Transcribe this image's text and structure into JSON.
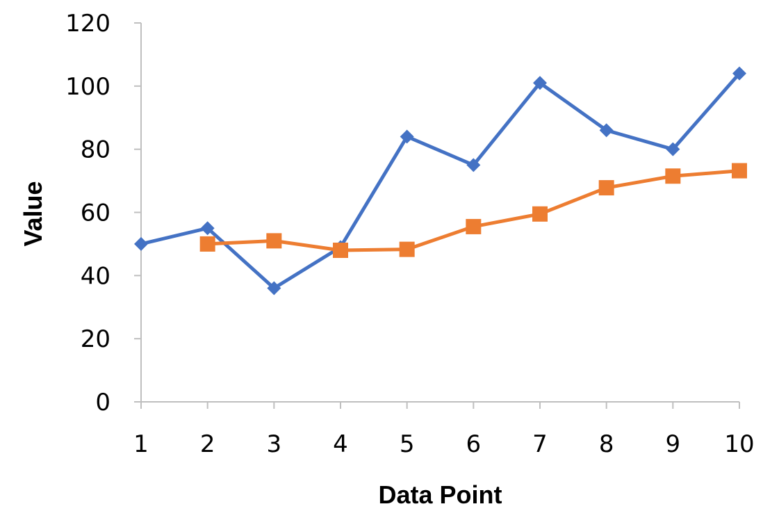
{
  "chart_data": {
    "type": "line",
    "title": "",
    "xlabel": "Data Point",
    "ylabel": "Value",
    "x": [
      1,
      2,
      3,
      4,
      5,
      6,
      7,
      8,
      9,
      10
    ],
    "xlim": [
      1,
      10
    ],
    "ylim": [
      0,
      120
    ],
    "yticks": [
      0,
      20,
      40,
      60,
      80,
      100,
      120
    ],
    "grid": false,
    "series": [
      {
        "marker": "diamond",
        "color": "#4472c4",
        "x": [
          1,
          2,
          3,
          4,
          5,
          6,
          7,
          8,
          9,
          10
        ],
        "values": [
          50,
          55,
          36,
          49,
          84,
          75,
          101,
          86,
          80,
          104
        ]
      },
      {
        "marker": "square",
        "color": "#ed7d31",
        "x": [
          2,
          3,
          4,
          5,
          6,
          7,
          8,
          9,
          10
        ],
        "values": [
          50,
          51,
          48,
          48.3,
          55.5,
          59.5,
          67.8,
          71.5,
          73.2
        ]
      }
    ]
  }
}
